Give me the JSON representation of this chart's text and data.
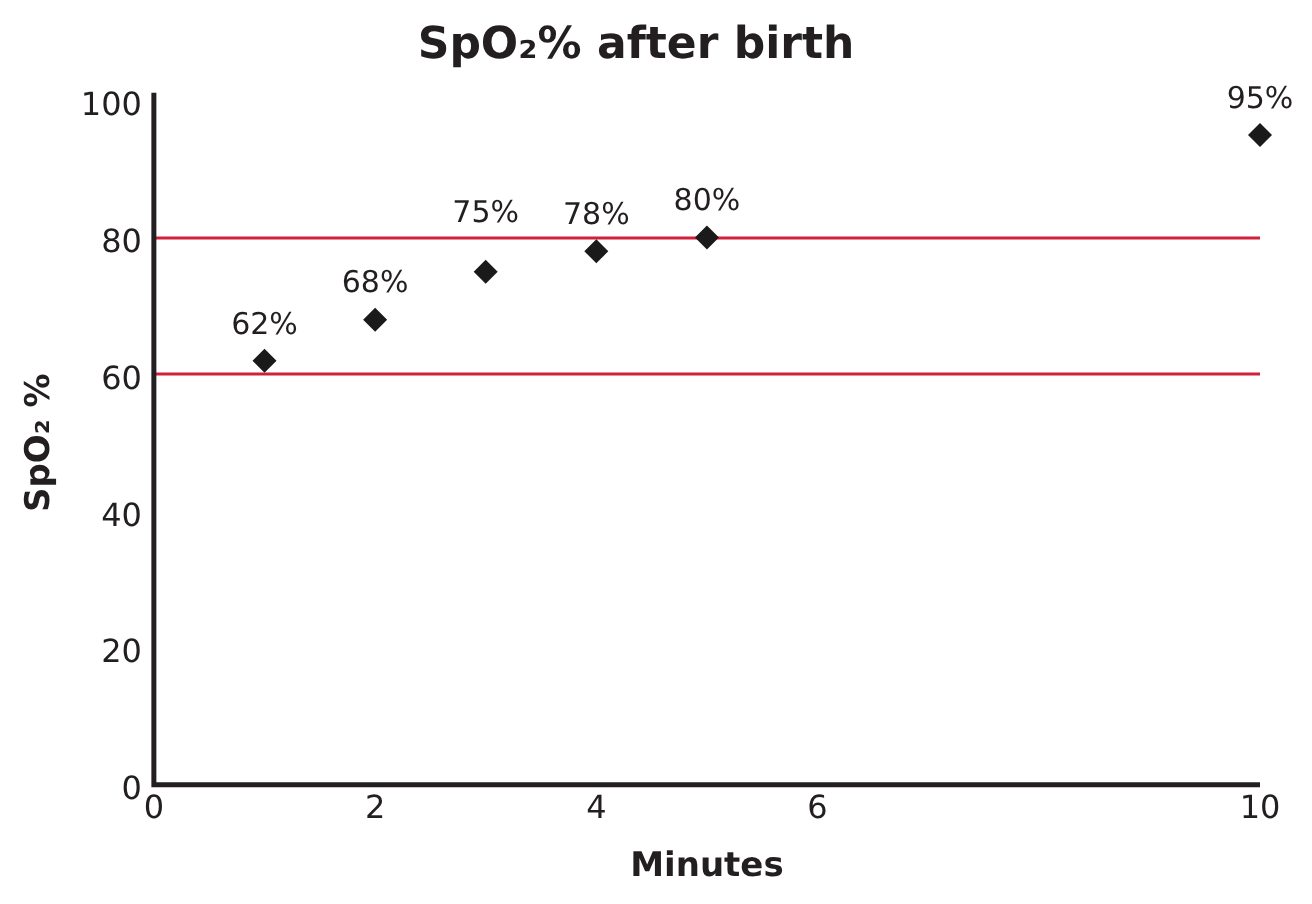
{
  "chart_data": {
    "type": "scatter",
    "title": "SpO₂% after birth",
    "xlabel": "Minutes",
    "ylabel": "SpO₂ %",
    "x": [
      1,
      2,
      3,
      4,
      5,
      10
    ],
    "series": [
      {
        "color": "#1a1a1a",
        "values": [
          62,
          68,
          75,
          78,
          80,
          95
        ],
        "value_labels": [
          "62%",
          "68%",
          "75%",
          "78%",
          "80%",
          "95%"
        ]
      }
    ],
    "xlim": [
      0,
      10
    ],
    "xticks": [
      0,
      2,
      4,
      6,
      10
    ],
    "ylim": [
      0,
      100
    ],
    "yticks": [
      0,
      20,
      40,
      60,
      80,
      100
    ],
    "ref_lines": [
      {
        "axis": "y",
        "value": 60,
        "color": "#d0203a"
      },
      {
        "axis": "y",
        "value": 80,
        "color": "#d0203a"
      }
    ],
    "marker": "diamond",
    "grid": false,
    "legend": false
  }
}
